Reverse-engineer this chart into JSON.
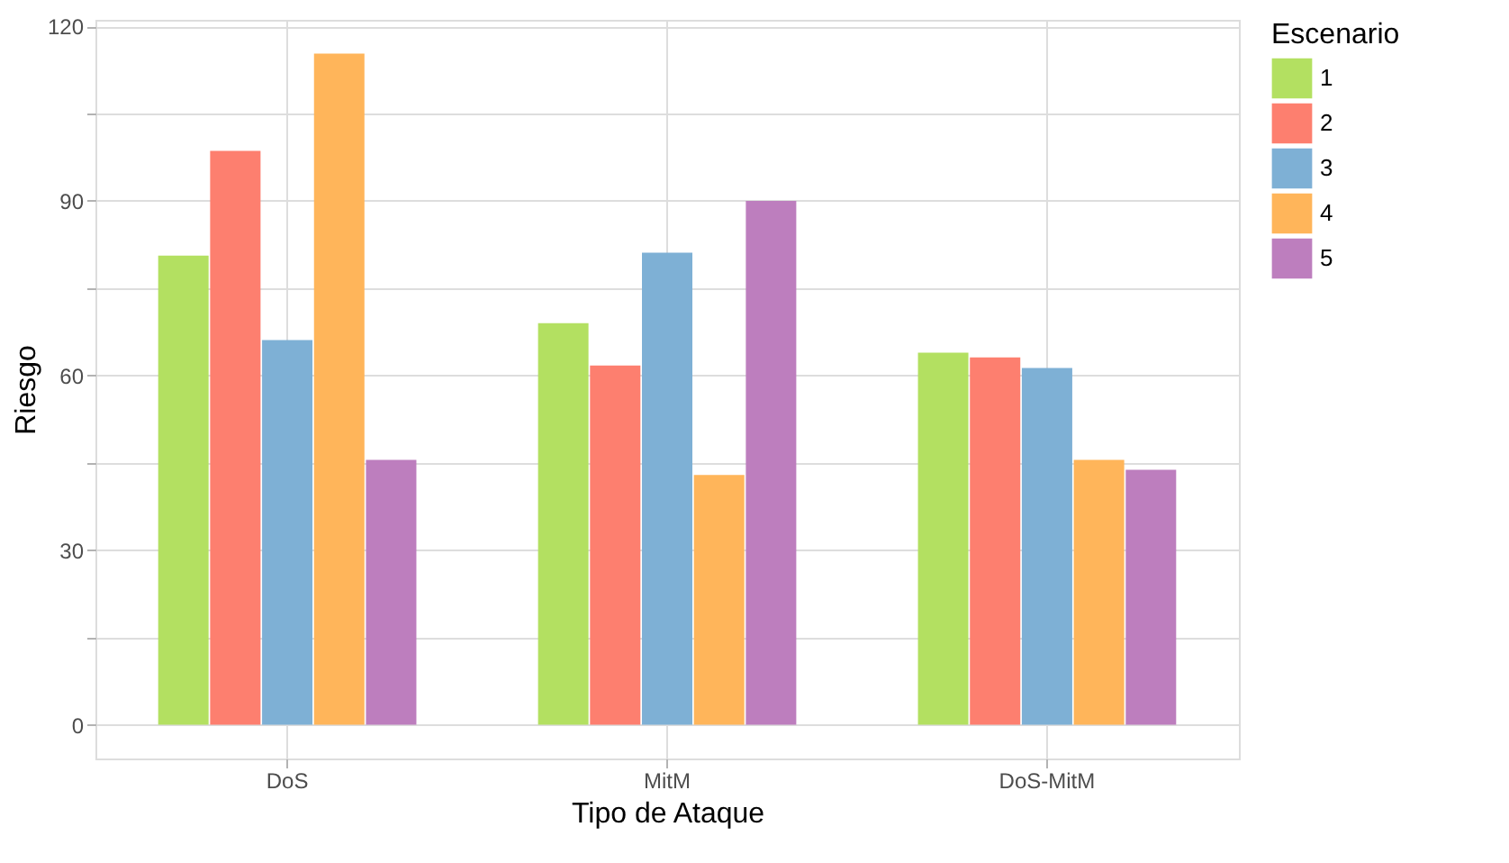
{
  "chart_data": {
    "type": "bar",
    "xlabel": "Tipo de Ataque",
    "ylabel": "Riesgo",
    "legend_title": "Escenario",
    "categories": [
      "DoS",
      "MitM",
      "DoS-MitM"
    ],
    "series": [
      {
        "name": "1",
        "color": "#b3e061",
        "values": [
          80.6,
          69.0,
          63.9
        ]
      },
      {
        "name": "2",
        "color": "#fd7f6f",
        "values": [
          98.6,
          61.7,
          63.1
        ]
      },
      {
        "name": "3",
        "color": "#7eb0d5",
        "values": [
          66.1,
          81.1,
          61.3
        ]
      },
      {
        "name": "4",
        "color": "#ffb55a",
        "values": [
          115.3,
          42.9,
          45.5
        ]
      },
      {
        "name": "5",
        "color": "#bd7ebe",
        "values": [
          45.5,
          90.0,
          43.8
        ]
      }
    ],
    "ylim": [
      -5.8,
      121.1
    ],
    "yticks": [
      0,
      {
        "value": 15,
        "label": null
      },
      30,
      {
        "value": 45,
        "label": null
      },
      60,
      {
        "value": 75,
        "label": null
      },
      90,
      {
        "value": 105,
        "label": null
      },
      120
    ],
    "grid": true,
    "legend": "right"
  }
}
